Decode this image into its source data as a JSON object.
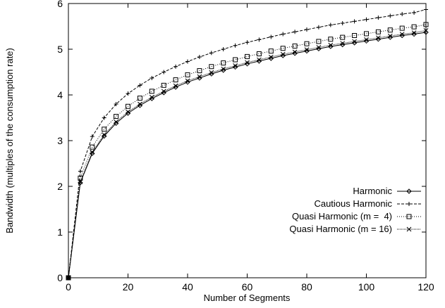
{
  "chart_data": {
    "type": "line",
    "xlabel": "Number of Segments",
    "ylabel": "Bandwidth (multiples of the consumption rate)",
    "xlim": [
      0,
      120
    ],
    "ylim": [
      0,
      6
    ],
    "xticks": [
      0,
      20,
      40,
      60,
      80,
      100,
      120
    ],
    "yticks": [
      0,
      1,
      2,
      3,
      4,
      5,
      6
    ],
    "xtick_labels": [
      "0",
      "20",
      "40",
      "60",
      "80",
      "100",
      "120"
    ],
    "ytick_labels": [
      "0",
      "1",
      "2",
      "3",
      "4",
      "5",
      "6"
    ],
    "grid": false,
    "legend_position": "right, lower middle",
    "x": [
      0,
      4,
      8,
      12,
      16,
      20,
      24,
      28,
      32,
      36,
      40,
      44,
      48,
      52,
      56,
      60,
      64,
      68,
      72,
      76,
      80,
      84,
      88,
      92,
      96,
      100,
      104,
      108,
      112,
      116,
      120
    ],
    "series": [
      {
        "name": "Harmonic",
        "marker": "diamond",
        "dash": "solid",
        "values": [
          0,
          2.08,
          2.72,
          3.1,
          3.38,
          3.6,
          3.77,
          3.92,
          4.05,
          4.17,
          4.28,
          4.37,
          4.46,
          4.54,
          4.61,
          4.68,
          4.74,
          4.8,
          4.86,
          4.91,
          4.96,
          5.01,
          5.06,
          5.1,
          5.14,
          5.18,
          5.22,
          5.26,
          5.3,
          5.33,
          5.37
        ]
      },
      {
        "name": "Cautious Harmonic",
        "marker": "plus",
        "dash": "dashed",
        "values": [
          0,
          2.33,
          3.09,
          3.5,
          3.8,
          4.03,
          4.21,
          4.37,
          4.5,
          4.62,
          4.73,
          4.83,
          4.92,
          5.0,
          5.08,
          5.15,
          5.21,
          5.27,
          5.33,
          5.38,
          5.43,
          5.48,
          5.53,
          5.57,
          5.61,
          5.65,
          5.69,
          5.73,
          5.77,
          5.8,
          5.87
        ]
      },
      {
        "name": "Quasi Harmonic (m =  4)",
        "marker": "square",
        "dash": "dotted",
        "values": [
          0,
          2.18,
          2.86,
          3.25,
          3.53,
          3.75,
          3.93,
          4.08,
          4.21,
          4.33,
          4.44,
          4.53,
          4.62,
          4.7,
          4.77,
          4.84,
          4.9,
          4.96,
          5.02,
          5.07,
          5.12,
          5.17,
          5.22,
          5.26,
          5.3,
          5.34,
          5.38,
          5.42,
          5.46,
          5.49,
          5.54
        ]
      },
      {
        "name": "Quasi Harmonic (m = 16)",
        "marker": "cross",
        "dash": "dotted-fine",
        "values": [
          0,
          2.1,
          2.75,
          3.13,
          3.41,
          3.63,
          3.8,
          3.95,
          4.08,
          4.2,
          4.31,
          4.4,
          4.49,
          4.57,
          4.64,
          4.71,
          4.77,
          4.83,
          4.89,
          4.94,
          4.99,
          5.04,
          5.09,
          5.13,
          5.17,
          5.21,
          5.25,
          5.29,
          5.33,
          5.36,
          5.41
        ]
      }
    ]
  }
}
